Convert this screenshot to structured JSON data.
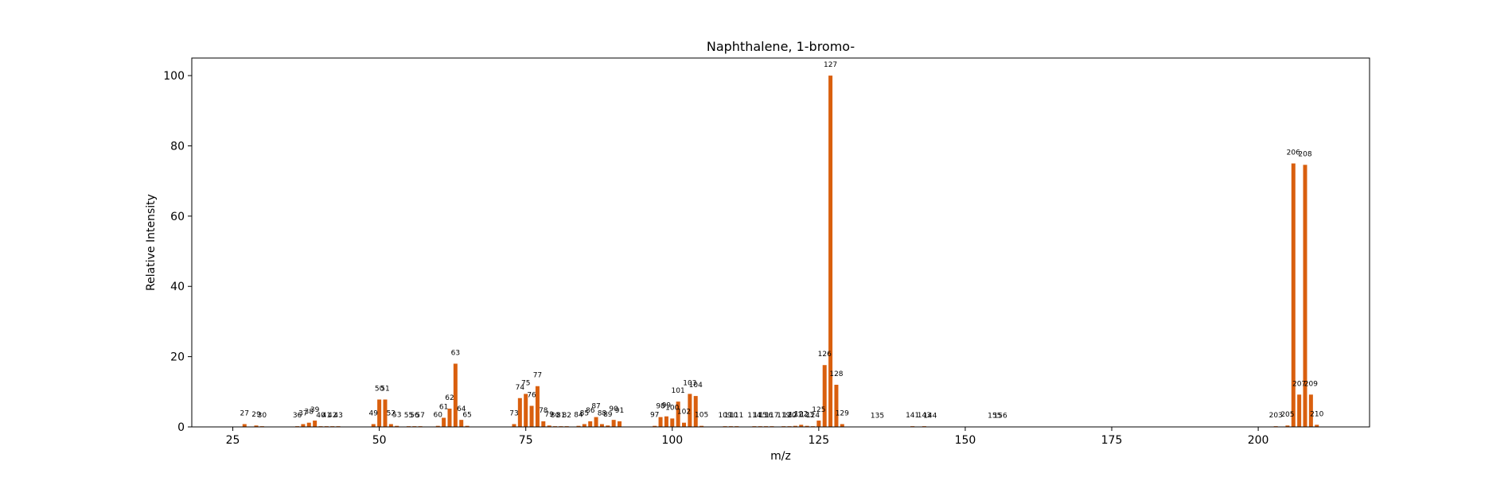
{
  "chart_data": {
    "type": "bar",
    "title": "Naphthalene, 1-bromo-",
    "xlabel": "m/z",
    "ylabel": "Relative Intensity",
    "xlim": [
      18,
      219
    ],
    "ylim": [
      0,
      105
    ],
    "xticks": [
      25,
      50,
      75,
      100,
      125,
      150,
      175,
      200
    ],
    "yticks": [
      0,
      20,
      40,
      60,
      80,
      100
    ],
    "grid": false,
    "bar_color": "#d95f0e",
    "points": [
      {
        "mz": 27,
        "intensity": 0.8
      },
      {
        "mz": 29,
        "intensity": 0.4
      },
      {
        "mz": 30,
        "intensity": 0.2
      },
      {
        "mz": 36,
        "intensity": 0.2
      },
      {
        "mz": 37,
        "intensity": 0.8
      },
      {
        "mz": 38,
        "intensity": 1.2
      },
      {
        "mz": 39,
        "intensity": 1.8
      },
      {
        "mz": 40,
        "intensity": 0.2
      },
      {
        "mz": 41,
        "intensity": 0.2
      },
      {
        "mz": 42,
        "intensity": 0.2
      },
      {
        "mz": 43,
        "intensity": 0.2
      },
      {
        "mz": 49,
        "intensity": 0.8
      },
      {
        "mz": 50,
        "intensity": 7.8
      },
      {
        "mz": 51,
        "intensity": 7.8
      },
      {
        "mz": 52,
        "intensity": 0.8
      },
      {
        "mz": 53,
        "intensity": 0.3
      },
      {
        "mz": 55,
        "intensity": 0.2
      },
      {
        "mz": 56,
        "intensity": 0.2
      },
      {
        "mz": 57,
        "intensity": 0.2
      },
      {
        "mz": 60,
        "intensity": 0.3
      },
      {
        "mz": 61,
        "intensity": 2.6
      },
      {
        "mz": 62,
        "intensity": 5.2
      },
      {
        "mz": 63,
        "intensity": 18.0
      },
      {
        "mz": 64,
        "intensity": 2.0
      },
      {
        "mz": 65,
        "intensity": 0.3
      },
      {
        "mz": 73,
        "intensity": 0.8
      },
      {
        "mz": 74,
        "intensity": 8.2
      },
      {
        "mz": 75,
        "intensity": 9.4
      },
      {
        "mz": 76,
        "intensity": 6.0
      },
      {
        "mz": 77,
        "intensity": 11.6
      },
      {
        "mz": 78,
        "intensity": 1.6
      },
      {
        "mz": 79,
        "intensity": 0.4
      },
      {
        "mz": 80,
        "intensity": 0.2
      },
      {
        "mz": 81,
        "intensity": 0.2
      },
      {
        "mz": 82,
        "intensity": 0.2
      },
      {
        "mz": 84,
        "intensity": 0.3
      },
      {
        "mz": 85,
        "intensity": 0.8
      },
      {
        "mz": 86,
        "intensity": 1.6
      },
      {
        "mz": 87,
        "intensity": 2.8
      },
      {
        "mz": 88,
        "intensity": 0.8
      },
      {
        "mz": 89,
        "intensity": 0.4
      },
      {
        "mz": 90,
        "intensity": 2.0
      },
      {
        "mz": 91,
        "intensity": 1.6
      },
      {
        "mz": 97,
        "intensity": 0.3
      },
      {
        "mz": 98,
        "intensity": 2.8
      },
      {
        "mz": 99,
        "intensity": 3.0
      },
      {
        "mz": 100,
        "intensity": 2.4
      },
      {
        "mz": 101,
        "intensity": 7.2
      },
      {
        "mz": 102,
        "intensity": 1.2
      },
      {
        "mz": 103,
        "intensity": 9.4
      },
      {
        "mz": 104,
        "intensity": 8.8
      },
      {
        "mz": 105,
        "intensity": 0.3
      },
      {
        "mz": 109,
        "intensity": 0.2
      },
      {
        "mz": 110,
        "intensity": 0.2
      },
      {
        "mz": 111,
        "intensity": 0.2
      },
      {
        "mz": 114,
        "intensity": 0.2
      },
      {
        "mz": 115,
        "intensity": 0.2
      },
      {
        "mz": 116,
        "intensity": 0.2
      },
      {
        "mz": 117,
        "intensity": 0.2
      },
      {
        "mz": 119,
        "intensity": 0.2
      },
      {
        "mz": 120,
        "intensity": 0.2
      },
      {
        "mz": 121,
        "intensity": 0.3
      },
      {
        "mz": 122,
        "intensity": 0.6
      },
      {
        "mz": 123,
        "intensity": 0.3
      },
      {
        "mz": 124,
        "intensity": 0.2
      },
      {
        "mz": 125,
        "intensity": 1.8
      },
      {
        "mz": 126,
        "intensity": 17.6
      },
      {
        "mz": 127,
        "intensity": 100
      },
      {
        "mz": 128,
        "intensity": 12.0
      },
      {
        "mz": 129,
        "intensity": 0.8
      },
      {
        "mz": 135,
        "intensity": 0.1
      },
      {
        "mz": 141,
        "intensity": 0.2
      },
      {
        "mz": 143,
        "intensity": 0.2
      },
      {
        "mz": 144,
        "intensity": 0.1
      },
      {
        "mz": 155,
        "intensity": 0.1
      },
      {
        "mz": 156,
        "intensity": 0.1
      },
      {
        "mz": 203,
        "intensity": 0.2
      },
      {
        "mz": 205,
        "intensity": 0.4
      },
      {
        "mz": 206,
        "intensity": 75.0
      },
      {
        "mz": 207,
        "intensity": 9.2
      },
      {
        "mz": 208,
        "intensity": 74.6
      },
      {
        "mz": 209,
        "intensity": 9.2
      },
      {
        "mz": 210,
        "intensity": 0.6
      }
    ]
  }
}
